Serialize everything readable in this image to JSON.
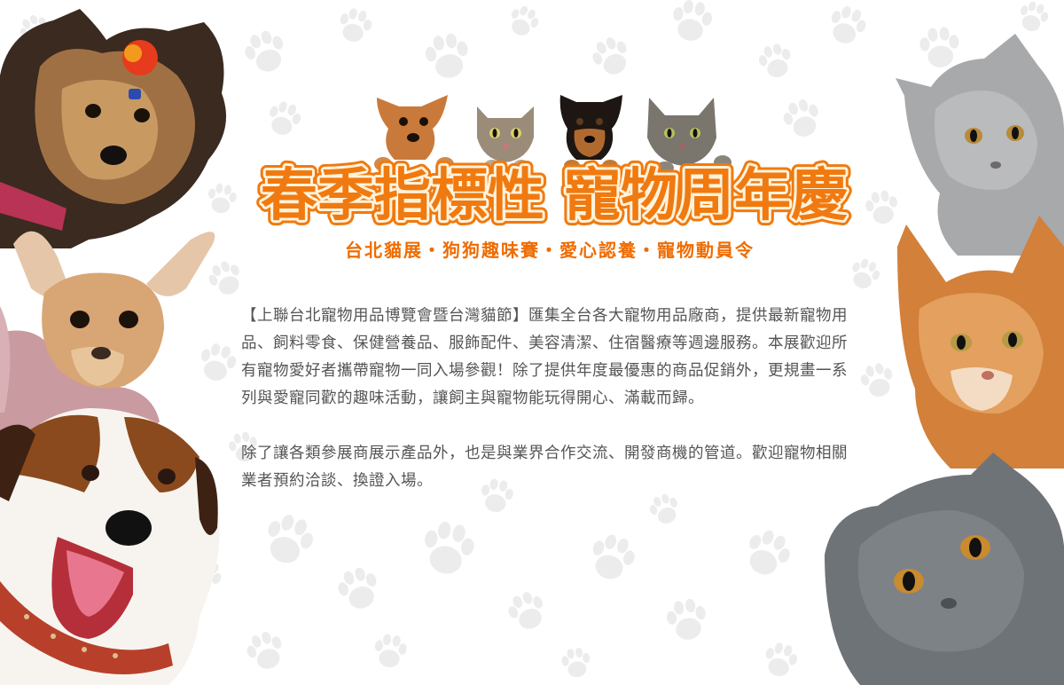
{
  "banner": {
    "title": "春季指標性 寵物周年慶",
    "subtitle": "台北貓展・狗狗趣味賽・愛心認養・寵物動員令",
    "paragraphs": [
      "【上聯台北寵物用品博覽會暨台灣貓節】匯集全台各大寵物用品廠商，提供最新寵物用品、飼料零食、保健營養品、服飾配件、美容清潔、住宿醫療等週邊服務。本展歡迎所有寵物愛好者攜帶寵物一同入場參觀！除了提供年度最優惠的商品促銷外，更規畫一系列與愛寵同歡的趣味活動，讓飼主與寵物能玩得開心、滿載而歸。",
      "除了讓各類參展商展示產品外，也是與業界合作交流、開發商機的管道。歡迎寵物相關業者預約洽談、換證入場。"
    ]
  },
  "colors": {
    "title_fill": "#f07a10",
    "title_outline": "#fff3dc",
    "subtitle": "#ef6c00",
    "body_text": "#555555",
    "paw_print": "#ececec"
  },
  "images": [
    "yorkshire-terrier",
    "chihuahua",
    "jack-russell-terrier",
    "header-puppy",
    "header-tabby-kitten",
    "header-black-tan-puppy",
    "header-grey-tabby-cat",
    "grey-kitten",
    "ginger-maine-coon",
    "grey-scottish-fold"
  ]
}
